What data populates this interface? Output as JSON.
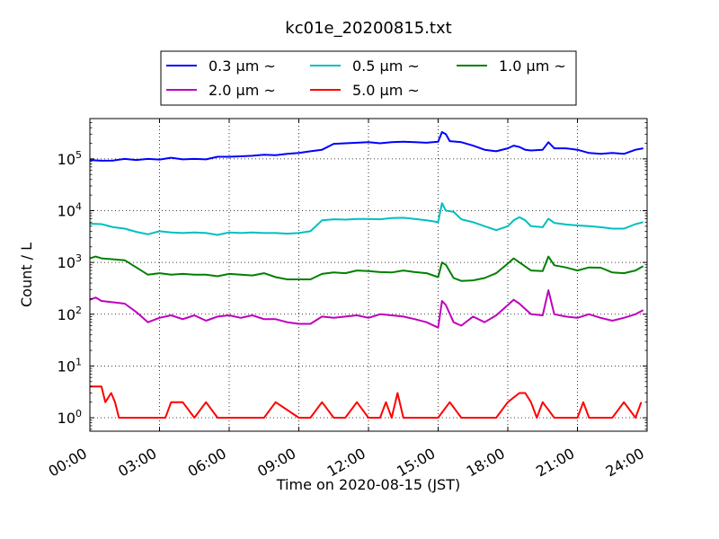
{
  "chart_data": {
    "type": "line",
    "title": "kc01e_20200815.txt",
    "xlabel": "Time on 2020-08-15 (JST)",
    "ylabel": "Count / L",
    "yscale": "log",
    "xlim": [
      "00:00",
      "24:00"
    ],
    "ylim": [
      0.55,
      600000
    ],
    "grid": true,
    "legend_position": "top-center",
    "x_ticks": [
      "00:00",
      "03:00",
      "06:00",
      "09:00",
      "12:00",
      "15:00",
      "18:00",
      "21:00",
      "24:00"
    ],
    "y_ticks": [
      {
        "value": 1,
        "label": "10",
        "exp": "0"
      },
      {
        "value": 10,
        "label": "10",
        "exp": "1"
      },
      {
        "value": 100,
        "label": "10",
        "exp": "2"
      },
      {
        "value": 1000,
        "label": "10",
        "exp": "3"
      },
      {
        "value": 10000,
        "label": "10",
        "exp": "4"
      },
      {
        "value": 100000,
        "label": "10",
        "exp": "5"
      }
    ],
    "series": [
      {
        "name": "0.3 μm ~",
        "color": "#0000ff",
        "points": [
          [
            "00:00",
            95000
          ],
          [
            "00:30",
            92000
          ],
          [
            "01:00",
            93000
          ],
          [
            "01:30",
            100000
          ],
          [
            "02:00",
            95000
          ],
          [
            "02:30",
            100000
          ],
          [
            "03:00",
            97000
          ],
          [
            "03:30",
            105000
          ],
          [
            "04:00",
            98000
          ],
          [
            "04:30",
            100000
          ],
          [
            "05:00",
            98000
          ],
          [
            "05:30",
            110000
          ],
          [
            "06:00",
            110000
          ],
          [
            "06:30",
            112000
          ],
          [
            "07:00",
            115000
          ],
          [
            "07:30",
            120000
          ],
          [
            "08:00",
            118000
          ],
          [
            "08:30",
            125000
          ],
          [
            "09:00",
            130000
          ],
          [
            "09:30",
            140000
          ],
          [
            "10:00",
            150000
          ],
          [
            "10:30",
            195000
          ],
          [
            "11:00",
            200000
          ],
          [
            "11:30",
            205000
          ],
          [
            "12:00",
            210000
          ],
          [
            "12:30",
            200000
          ],
          [
            "13:00",
            210000
          ],
          [
            "13:30",
            215000
          ],
          [
            "14:00",
            210000
          ],
          [
            "14:30",
            205000
          ],
          [
            "15:00",
            215000
          ],
          [
            "15:10",
            330000
          ],
          [
            "15:20",
            300000
          ],
          [
            "15:30",
            220000
          ],
          [
            "16:00",
            210000
          ],
          [
            "16:30",
            180000
          ],
          [
            "17:00",
            150000
          ],
          [
            "17:30",
            140000
          ],
          [
            "18:00",
            160000
          ],
          [
            "18:15",
            180000
          ],
          [
            "18:30",
            170000
          ],
          [
            "18:45",
            150000
          ],
          [
            "19:00",
            145000
          ],
          [
            "19:30",
            150000
          ],
          [
            "19:45",
            210000
          ],
          [
            "20:00",
            160000
          ],
          [
            "20:30",
            160000
          ],
          [
            "21:00",
            150000
          ],
          [
            "21:30",
            130000
          ],
          [
            "22:00",
            125000
          ],
          [
            "22:30",
            130000
          ],
          [
            "23:00",
            125000
          ],
          [
            "23:30",
            150000
          ],
          [
            "23:50",
            160000
          ]
        ]
      },
      {
        "name": "0.5 μm ~",
        "color": "#00bfbf",
        "points": [
          [
            "00:00",
            5600
          ],
          [
            "00:30",
            5500
          ],
          [
            "01:00",
            4800
          ],
          [
            "01:30",
            4500
          ],
          [
            "02:00",
            3900
          ],
          [
            "02:30",
            3500
          ],
          [
            "03:00",
            4000
          ],
          [
            "03:30",
            3800
          ],
          [
            "04:00",
            3700
          ],
          [
            "04:30",
            3800
          ],
          [
            "05:00",
            3700
          ],
          [
            "05:30",
            3400
          ],
          [
            "06:00",
            3800
          ],
          [
            "06:30",
            3700
          ],
          [
            "07:00",
            3800
          ],
          [
            "07:30",
            3700
          ],
          [
            "08:00",
            3700
          ],
          [
            "08:30",
            3600
          ],
          [
            "09:00",
            3700
          ],
          [
            "09:30",
            4000
          ],
          [
            "10:00",
            6500
          ],
          [
            "10:30",
            6800
          ],
          [
            "11:00",
            6700
          ],
          [
            "11:30",
            6900
          ],
          [
            "12:00",
            6900
          ],
          [
            "12:30",
            6800
          ],
          [
            "13:00",
            7200
          ],
          [
            "13:30",
            7300
          ],
          [
            "14:00",
            6900
          ],
          [
            "14:30",
            6500
          ],
          [
            "15:00",
            6000
          ],
          [
            "15:10",
            14000
          ],
          [
            "15:20",
            10000
          ],
          [
            "15:40",
            9500
          ],
          [
            "16:00",
            6800
          ],
          [
            "16:30",
            6000
          ],
          [
            "17:00",
            5000
          ],
          [
            "17:30",
            4200
          ],
          [
            "18:00",
            5000
          ],
          [
            "18:15",
            6500
          ],
          [
            "18:30",
            7500
          ],
          [
            "18:45",
            6500
          ],
          [
            "19:00",
            5000
          ],
          [
            "19:30",
            4800
          ],
          [
            "19:45",
            7000
          ],
          [
            "20:00",
            5800
          ],
          [
            "20:30",
            5400
          ],
          [
            "21:00",
            5200
          ],
          [
            "21:30",
            5000
          ],
          [
            "22:00",
            4800
          ],
          [
            "22:30",
            4500
          ],
          [
            "23:00",
            4500
          ],
          [
            "23:30",
            5500
          ],
          [
            "23:50",
            6000
          ]
        ]
      },
      {
        "name": "1.0 μm ~",
        "color": "#008000",
        "points": [
          [
            "00:00",
            1200
          ],
          [
            "00:15",
            1300
          ],
          [
            "00:30",
            1200
          ],
          [
            "01:00",
            1150
          ],
          [
            "01:30",
            1100
          ],
          [
            "02:00",
            800
          ],
          [
            "02:30",
            580
          ],
          [
            "03:00",
            620
          ],
          [
            "03:30",
            580
          ],
          [
            "04:00",
            600
          ],
          [
            "04:30",
            580
          ],
          [
            "05:00",
            580
          ],
          [
            "05:30",
            540
          ],
          [
            "06:00",
            600
          ],
          [
            "06:30",
            580
          ],
          [
            "07:00",
            560
          ],
          [
            "07:30",
            620
          ],
          [
            "08:00",
            520
          ],
          [
            "08:30",
            470
          ],
          [
            "09:00",
            470
          ],
          [
            "09:30",
            470
          ],
          [
            "10:00",
            600
          ],
          [
            "10:30",
            640
          ],
          [
            "11:00",
            620
          ],
          [
            "11:30",
            700
          ],
          [
            "12:00",
            680
          ],
          [
            "12:30",
            650
          ],
          [
            "13:00",
            640
          ],
          [
            "13:30",
            700
          ],
          [
            "14:00",
            650
          ],
          [
            "14:30",
            620
          ],
          [
            "15:00",
            520
          ],
          [
            "15:10",
            1000
          ],
          [
            "15:20",
            900
          ],
          [
            "15:40",
            500
          ],
          [
            "16:00",
            440
          ],
          [
            "16:30",
            450
          ],
          [
            "17:00",
            500
          ],
          [
            "17:30",
            620
          ],
          [
            "18:00",
            950
          ],
          [
            "18:15",
            1200
          ],
          [
            "18:30",
            1000
          ],
          [
            "19:00",
            700
          ],
          [
            "19:30",
            680
          ],
          [
            "19:45",
            1300
          ],
          [
            "20:00",
            880
          ],
          [
            "20:30",
            800
          ],
          [
            "21:00",
            700
          ],
          [
            "21:30",
            800
          ],
          [
            "22:00",
            790
          ],
          [
            "22:30",
            640
          ],
          [
            "23:00",
            620
          ],
          [
            "23:30",
            700
          ],
          [
            "23:50",
            850
          ]
        ]
      },
      {
        "name": "2.0 μm ~",
        "color": "#bf00bf",
        "points": [
          [
            "00:00",
            190
          ],
          [
            "00:15",
            210
          ],
          [
            "00:30",
            180
          ],
          [
            "01:00",
            170
          ],
          [
            "01:30",
            160
          ],
          [
            "02:00",
            110
          ],
          [
            "02:30",
            70
          ],
          [
            "03:00",
            85
          ],
          [
            "03:30",
            95
          ],
          [
            "04:00",
            80
          ],
          [
            "04:30",
            95
          ],
          [
            "05:00",
            75
          ],
          [
            "05:30",
            90
          ],
          [
            "06:00",
            95
          ],
          [
            "06:30",
            85
          ],
          [
            "07:00",
            95
          ],
          [
            "07:30",
            80
          ],
          [
            "08:00",
            80
          ],
          [
            "08:30",
            70
          ],
          [
            "09:00",
            65
          ],
          [
            "09:30",
            65
          ],
          [
            "10:00",
            90
          ],
          [
            "10:30",
            85
          ],
          [
            "11:00",
            90
          ],
          [
            "11:30",
            95
          ],
          [
            "12:00",
            85
          ],
          [
            "12:30",
            100
          ],
          [
            "13:00",
            95
          ],
          [
            "13:30",
            90
          ],
          [
            "14:00",
            80
          ],
          [
            "14:30",
            70
          ],
          [
            "15:00",
            55
          ],
          [
            "15:10",
            180
          ],
          [
            "15:20",
            150
          ],
          [
            "15:40",
            70
          ],
          [
            "16:00",
            60
          ],
          [
            "16:30",
            90
          ],
          [
            "17:00",
            70
          ],
          [
            "17:30",
            95
          ],
          [
            "18:00",
            150
          ],
          [
            "18:15",
            190
          ],
          [
            "18:30",
            160
          ],
          [
            "19:00",
            100
          ],
          [
            "19:30",
            95
          ],
          [
            "19:45",
            290
          ],
          [
            "20:00",
            100
          ],
          [
            "20:30",
            90
          ],
          [
            "21:00",
            85
          ],
          [
            "21:30",
            100
          ],
          [
            "22:00",
            85
          ],
          [
            "22:30",
            75
          ],
          [
            "23:00",
            85
          ],
          [
            "23:30",
            100
          ],
          [
            "23:50",
            120
          ]
        ]
      },
      {
        "name": "5.0 μm ~",
        "color": "#ff0000",
        "points": [
          [
            "00:00",
            4
          ],
          [
            "00:30",
            4
          ],
          [
            "00:40",
            2
          ],
          [
            "00:55",
            3
          ],
          [
            "01:05",
            2
          ],
          [
            "01:15",
            1
          ],
          [
            "01:45",
            1
          ],
          [
            "02:00",
            1
          ],
          [
            "02:15",
            1
          ],
          [
            "02:30",
            1
          ],
          [
            "03:00",
            1
          ],
          [
            "03:15",
            1
          ],
          [
            "03:30",
            2
          ],
          [
            "04:00",
            2
          ],
          [
            "04:30",
            1
          ],
          [
            "05:00",
            2
          ],
          [
            "05:30",
            1
          ],
          [
            "06:00",
            1
          ],
          [
            "06:30",
            1
          ],
          [
            "07:30",
            1
          ],
          [
            "08:00",
            2
          ],
          [
            "09:00",
            1
          ],
          [
            "09:30",
            1
          ],
          [
            "10:00",
            2
          ],
          [
            "10:30",
            1
          ],
          [
            "11:00",
            1
          ],
          [
            "11:30",
            2
          ],
          [
            "12:00",
            1
          ],
          [
            "12:30",
            1
          ],
          [
            "12:45",
            2
          ],
          [
            "13:00",
            1
          ],
          [
            "13:15",
            3
          ],
          [
            "13:30",
            1
          ],
          [
            "14:00",
            1
          ],
          [
            "14:30",
            1
          ],
          [
            "15:00",
            1
          ],
          [
            "15:30",
            2
          ],
          [
            "16:00",
            1
          ],
          [
            "16:30",
            1
          ],
          [
            "17:00",
            1
          ],
          [
            "17:30",
            1
          ],
          [
            "18:00",
            2
          ],
          [
            "18:30",
            3
          ],
          [
            "18:45",
            3
          ],
          [
            "19:00",
            2
          ],
          [
            "19:15",
            1
          ],
          [
            "19:30",
            2
          ],
          [
            "20:00",
            1
          ],
          [
            "20:30",
            1
          ],
          [
            "21:00",
            1
          ],
          [
            "21:15",
            2
          ],
          [
            "21:30",
            1
          ],
          [
            "22:00",
            1
          ],
          [
            "22:30",
            1
          ],
          [
            "23:00",
            2
          ],
          [
            "23:30",
            1
          ],
          [
            "23:45",
            2
          ]
        ]
      }
    ]
  }
}
